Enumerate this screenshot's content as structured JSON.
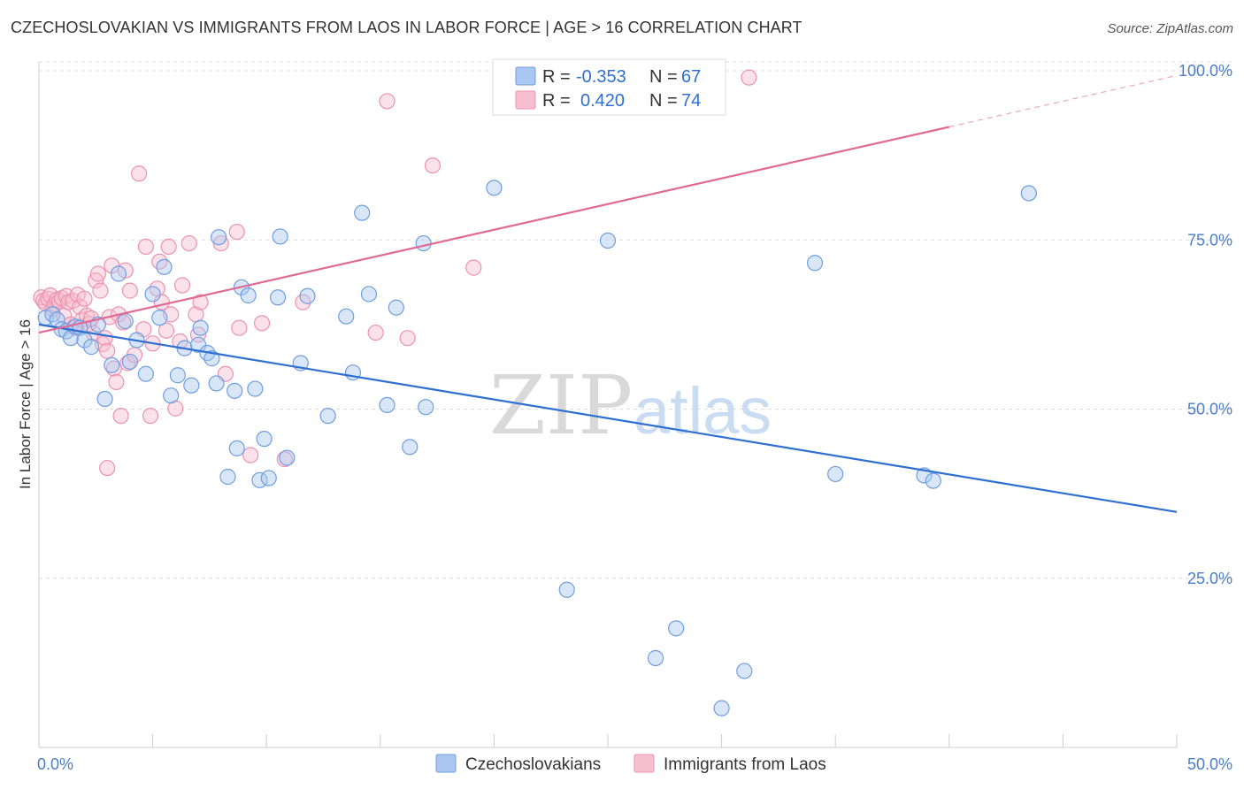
{
  "title": "CZECHOSLOVAKIAN VS IMMIGRANTS FROM LAOS IN LABOR FORCE | AGE > 16 CORRELATION CHART",
  "source": "Source: ZipAtlas.com",
  "watermark": {
    "zip": "ZIP",
    "atlas": "atlas"
  },
  "colors": {
    "blue_fill": "#a9c7f0",
    "blue_stroke": "#6f9ee0",
    "blue_line": "#2f6fd1",
    "pink_fill": "#f6bfd0",
    "pink_stroke": "#ec92b0",
    "pink_line": "#e06a94",
    "tick_text": "#4a7cc9",
    "grid": "#dddddd"
  },
  "stats": [
    {
      "r_label": "R =",
      "r_value": "-0.353",
      "n_label": "N =",
      "n_value": "67"
    },
    {
      "r_label": "R =",
      "r_value": "0.420",
      "n_label": "N =",
      "n_value": "74"
    }
  ],
  "chart_data": {
    "type": "scatter",
    "title": "CZECHOSLOVAKIAN VS IMMIGRANTS FROM LAOS IN LABOR FORCE | AGE > 16 CORRELATION CHART",
    "xlabel": "",
    "ylabel": "In Labor Force | Age > 16",
    "xlim": [
      0,
      50
    ],
    "ylim": [
      0,
      105
    ],
    "x_tick_labels": [
      {
        "value": 0,
        "label": "0.0%"
      },
      {
        "value": 50,
        "label": "50.0%"
      }
    ],
    "y_tick_labels": [
      {
        "value": 25,
        "label": "25.0%"
      },
      {
        "value": 50,
        "label": "50.0%"
      },
      {
        "value": 75,
        "label": "75.0%"
      },
      {
        "value": 100,
        "label": "100.0%"
      }
    ],
    "grid": true,
    "legend_position": "bottom-center",
    "series": [
      {
        "name": "Czechoslovakians",
        "color": "#a9c7f0",
        "trend": {
          "x0": 0,
          "y0": 62.5,
          "x1": 50,
          "y1": 34.8
        },
        "points": [
          [
            0.3,
            63.5
          ],
          [
            0.6,
            64.0
          ],
          [
            0.8,
            63.2
          ],
          [
            1.0,
            61.8
          ],
          [
            1.2,
            61.5
          ],
          [
            1.4,
            60.5
          ],
          [
            1.6,
            62.2
          ],
          [
            1.8,
            62.0
          ],
          [
            2.0,
            60.2
          ],
          [
            2.3,
            59.2
          ],
          [
            2.6,
            62.5
          ],
          [
            2.9,
            51.5
          ],
          [
            3.2,
            56.5
          ],
          [
            3.5,
            70.0
          ],
          [
            3.8,
            63.0
          ],
          [
            4.0,
            57.0
          ],
          [
            4.3,
            60.2
          ],
          [
            4.7,
            55.2
          ],
          [
            5.0,
            67.0
          ],
          [
            5.3,
            63.5
          ],
          [
            5.5,
            71.0
          ],
          [
            5.8,
            52.0
          ],
          [
            6.1,
            55.0
          ],
          [
            6.4,
            59.0
          ],
          [
            6.7,
            53.5
          ],
          [
            7.0,
            59.5
          ],
          [
            7.1,
            62.0
          ],
          [
            7.4,
            58.3
          ],
          [
            7.6,
            57.5
          ],
          [
            7.8,
            53.8
          ],
          [
            7.9,
            75.4
          ],
          [
            8.3,
            40.0
          ],
          [
            8.6,
            52.7
          ],
          [
            8.7,
            44.2
          ],
          [
            8.9,
            68.0
          ],
          [
            9.2,
            66.8
          ],
          [
            9.5,
            53.0
          ],
          [
            9.7,
            39.5
          ],
          [
            9.9,
            45.6
          ],
          [
            10.1,
            39.8
          ],
          [
            10.5,
            66.5
          ],
          [
            10.6,
            75.5
          ],
          [
            10.9,
            42.8
          ],
          [
            11.5,
            56.8
          ],
          [
            11.8,
            66.7
          ],
          [
            12.7,
            49.0
          ],
          [
            13.5,
            63.7
          ],
          [
            13.8,
            55.4
          ],
          [
            14.2,
            79.0
          ],
          [
            14.5,
            67.0
          ],
          [
            15.3,
            50.6
          ],
          [
            15.7,
            65.0
          ],
          [
            16.3,
            44.4
          ],
          [
            17.0,
            50.3
          ],
          [
            16.9,
            74.5
          ],
          [
            20.0,
            82.7
          ],
          [
            23.2,
            23.3
          ],
          [
            25.0,
            74.9
          ],
          [
            27.1,
            13.2
          ],
          [
            28.0,
            17.6
          ],
          [
            30.0,
            5.8
          ],
          [
            31.0,
            11.3
          ],
          [
            34.1,
            71.6
          ],
          [
            35.0,
            40.4
          ],
          [
            38.9,
            40.2
          ],
          [
            39.3,
            39.4
          ],
          [
            43.5,
            81.9
          ]
        ]
      },
      {
        "name": "Immigrants from Laos",
        "color": "#f6bfd0",
        "trend": {
          "x0": 0,
          "y0": 61.3,
          "x1": 40,
          "y1": 91.7,
          "x_dashed_end": 50,
          "y_dashed_end": 99.3
        },
        "points": [
          [
            0.1,
            66.5
          ],
          [
            0.2,
            66.0
          ],
          [
            0.3,
            65.6
          ],
          [
            0.4,
            66.3
          ],
          [
            0.5,
            66.8
          ],
          [
            0.6,
            64.8
          ],
          [
            0.7,
            65.5
          ],
          [
            0.8,
            66.2
          ],
          [
            0.9,
            65.9
          ],
          [
            1.0,
            66.4
          ],
          [
            1.1,
            63.8
          ],
          [
            1.2,
            66.7
          ],
          [
            1.3,
            65.8
          ],
          [
            1.4,
            62.5
          ],
          [
            1.5,
            66.0
          ],
          [
            1.6,
            62.0
          ],
          [
            1.7,
            66.9
          ],
          [
            1.8,
            65.1
          ],
          [
            1.9,
            63.2
          ],
          [
            2.0,
            66.3
          ],
          [
            2.1,
            63.8
          ],
          [
            2.2,
            62.6
          ],
          [
            2.3,
            63.4
          ],
          [
            2.4,
            61.2
          ],
          [
            2.5,
            69.0
          ],
          [
            2.6,
            70.0
          ],
          [
            2.7,
            67.5
          ],
          [
            2.8,
            59.6
          ],
          [
            2.9,
            60.5
          ],
          [
            3.0,
            58.6
          ],
          [
            3.1,
            63.6
          ],
          [
            3.2,
            71.2
          ],
          [
            3.3,
            56.0
          ],
          [
            3.4,
            54.0
          ],
          [
            3.5,
            64.0
          ],
          [
            3.6,
            49.0
          ],
          [
            3.7,
            62.8
          ],
          [
            3.8,
            70.5
          ],
          [
            3.9,
            56.8
          ],
          [
            4.0,
            67.5
          ],
          [
            4.2,
            58.0
          ],
          [
            4.4,
            84.8
          ],
          [
            4.6,
            61.8
          ],
          [
            4.7,
            74.0
          ],
          [
            4.9,
            49.0
          ],
          [
            5.0,
            59.7
          ],
          [
            5.2,
            67.8
          ],
          [
            5.3,
            71.8
          ],
          [
            5.4,
            65.8
          ],
          [
            5.6,
            61.6
          ],
          [
            5.7,
            74.0
          ],
          [
            5.8,
            64.0
          ],
          [
            6.0,
            50.1
          ],
          [
            6.2,
            60.0
          ],
          [
            6.3,
            68.3
          ],
          [
            6.6,
            74.5
          ],
          [
            6.9,
            64.0
          ],
          [
            7.0,
            61.0
          ],
          [
            7.1,
            65.8
          ],
          [
            8.0,
            74.5
          ],
          [
            8.2,
            55.2
          ],
          [
            8.7,
            76.2
          ],
          [
            8.8,
            62.0
          ],
          [
            9.3,
            43.2
          ],
          [
            9.8,
            62.7
          ],
          [
            10.8,
            42.6
          ],
          [
            11.6,
            65.8
          ],
          [
            14.8,
            61.3
          ],
          [
            15.3,
            95.5
          ],
          [
            16.2,
            60.5
          ],
          [
            17.3,
            86.0
          ],
          [
            19.1,
            70.9
          ],
          [
            31.2,
            99.0
          ],
          [
            3.0,
            41.3
          ]
        ]
      }
    ]
  }
}
